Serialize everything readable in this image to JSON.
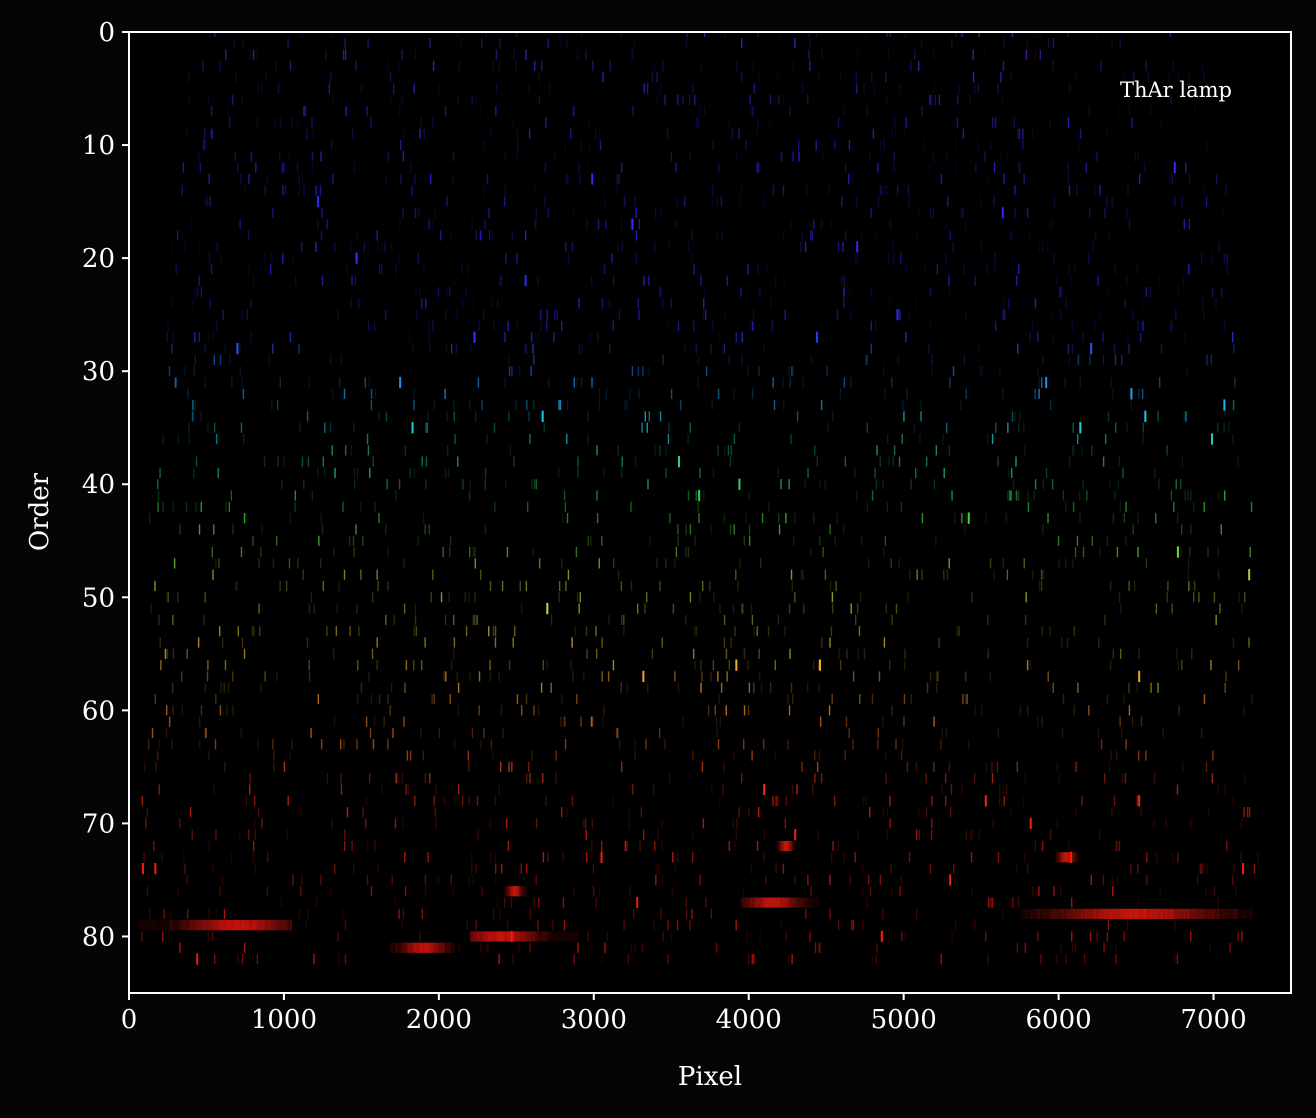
{
  "chart_data": {
    "type": "heatmap",
    "title": "",
    "xlabel": "Pixel",
    "ylabel": "Order",
    "xlim": [
      0,
      7500
    ],
    "ylim": [
      0,
      85
    ],
    "y_inverted": true,
    "x_ticks": [
      "0",
      "1000",
      "2000",
      "3000",
      "4000",
      "5000",
      "6000",
      "7000"
    ],
    "y_ticks": [
      "0",
      "10",
      "20",
      "30",
      "40",
      "50",
      "60",
      "70",
      "80"
    ],
    "annotation": "ThAr lamp",
    "annotation_position": "top-right",
    "colormap": "orders colored by wavelength: violet (order 0) to blue, cyan, green, yellow, orange, red (order 82)",
    "colors": {
      "background": "#050505",
      "axes": "#ffffff",
      "violet": "#7a1ee0",
      "blue": "#2d2dff",
      "cyan": "#20d0ff",
      "green": "#30e040",
      "yellow": "#f0e030",
      "orange": "#ff9020",
      "red": "#ff1010"
    },
    "bright_lines": [
      {
        "x": 1220,
        "order": 15
      },
      {
        "x": 1470,
        "order": 20
      },
      {
        "x": 2230,
        "order": 27
      },
      {
        "x": 2560,
        "order": 22
      },
      {
        "x": 2990,
        "order": 13
      },
      {
        "x": 3250,
        "order": 17
      },
      {
        "x": 4440,
        "order": 27
      },
      {
        "x": 4700,
        "order": 19
      },
      {
        "x": 4960,
        "order": 25
      },
      {
        "x": 5640,
        "order": 16
      },
      {
        "x": 6210,
        "order": 28
      },
      {
        "x": 6750,
        "order": 12
      },
      {
        "x": 700,
        "order": 28
      },
      {
        "x": 1750,
        "order": 31
      },
      {
        "x": 1830,
        "order": 35
      },
      {
        "x": 2670,
        "order": 34
      },
      {
        "x": 5920,
        "order": 31
      },
      {
        "x": 6470,
        "order": 32
      },
      {
        "x": 6560,
        "order": 34
      },
      {
        "x": 6140,
        "order": 35
      },
      {
        "x": 7070,
        "order": 33
      },
      {
        "x": 6990,
        "order": 36
      },
      {
        "x": 3550,
        "order": 38
      },
      {
        "x": 3940,
        "order": 40
      },
      {
        "x": 3680,
        "order": 41
      },
      {
        "x": 5420,
        "order": 43
      },
      {
        "x": 6770,
        "order": 46
      },
      {
        "x": 7230,
        "order": 48
      },
      {
        "x": 2700,
        "order": 51
      },
      {
        "x": 3920,
        "order": 56
      },
      {
        "x": 4460,
        "order": 56
      },
      {
        "x": 3320,
        "order": 57
      },
      {
        "x": 6520,
        "order": 57
      },
      {
        "x": 4100,
        "order": 67
      },
      {
        "x": 4300,
        "order": 71
      },
      {
        "x": 5530,
        "order": 68
      },
      {
        "x": 5820,
        "order": 70
      },
      {
        "x": 6080,
        "order": 73
      },
      {
        "x": 6520,
        "order": 68
      },
      {
        "x": 7190,
        "order": 74
      },
      {
        "x": 3050,
        "order": 73
      },
      {
        "x": 3280,
        "order": 77
      },
      {
        "x": 2470,
        "order": 80
      },
      {
        "x": 440,
        "order": 82
      },
      {
        "x": 90,
        "order": 74
      },
      {
        "x": 170,
        "order": 74
      },
      {
        "x": 5300,
        "order": 75
      },
      {
        "x": 4860,
        "order": 80
      }
    ],
    "bright_bands": [
      {
        "order": 79,
        "x_start": 60,
        "x_end": 1050,
        "peak_x": 700
      },
      {
        "order": 81,
        "x_start": 1680,
        "x_end": 2100,
        "peak_x": 1900
      },
      {
        "order": 80,
        "x_start": 2200,
        "x_end": 2900,
        "peak_x": 2400
      },
      {
        "order": 76,
        "x_start": 2420,
        "x_end": 2560,
        "peak_x": 2490
      },
      {
        "order": 77,
        "x_start": 3950,
        "x_end": 4450,
        "peak_x": 4150
      },
      {
        "order": 72,
        "x_start": 4180,
        "x_end": 4300,
        "peak_x": 4240
      },
      {
        "order": 73,
        "x_start": 5980,
        "x_end": 6130,
        "peak_x": 6050
      },
      {
        "order": 78,
        "x_start": 5750,
        "x_end": 7250,
        "peak_x": 6500
      }
    ]
  }
}
